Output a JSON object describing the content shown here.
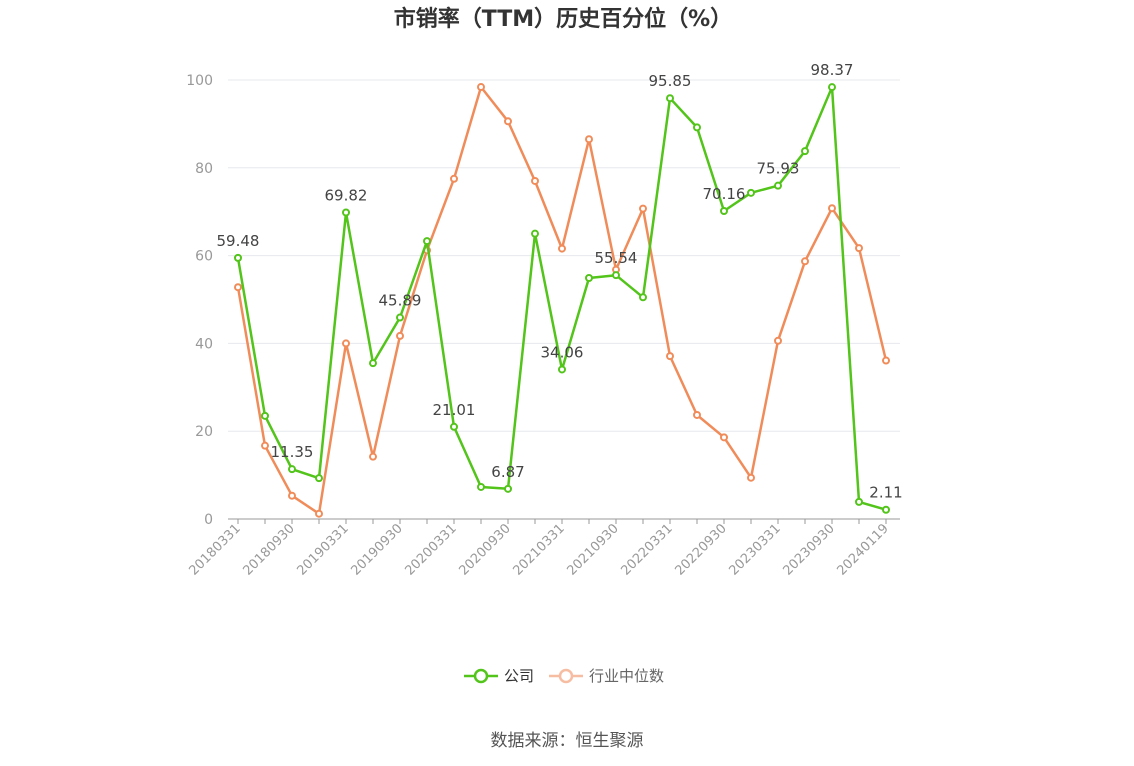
{
  "chart_data": {
    "type": "line",
    "title": "市销率（TTM）历史百分位（%）",
    "source": "数据来源：恒生聚源",
    "ylim": [
      0,
      100
    ],
    "yticks": [
      "0",
      "20",
      "40",
      "60",
      "80",
      "100"
    ],
    "grid": true,
    "legend_position": "bottom-center",
    "x": [
      "20180331",
      "20180630",
      "20180930",
      "20181231",
      "20190331",
      "20190630",
      "20190930",
      "20191231",
      "20200331",
      "20200630",
      "20200930",
      "20201231",
      "20210331",
      "20210630",
      "20210930",
      "20211231",
      "20220331",
      "20220630",
      "20220930",
      "20221231",
      "20230331",
      "20230630",
      "20230930",
      "20231231",
      "20240119"
    ],
    "xtick_labels": [
      "20180331",
      "20180930",
      "20190331",
      "20190930",
      "20200331",
      "20200930",
      "20210331",
      "20210930",
      "20220331",
      "20220930",
      "20230331",
      "20230930",
      "20240119"
    ],
    "series": [
      {
        "name": "公司",
        "color": "#52c41a",
        "values": [
          59.48,
          23.5,
          11.35,
          9.3,
          69.82,
          35.5,
          45.89,
          63.3,
          21.01,
          7.3,
          6.87,
          65.0,
          34.06,
          54.9,
          55.54,
          50.5,
          95.85,
          89.2,
          70.16,
          74.3,
          75.93,
          83.8,
          98.37,
          3.9,
          2.11
        ],
        "data_labels": [
          {
            "index": 0,
            "text": "59.48"
          },
          {
            "index": 2,
            "text": "11.35"
          },
          {
            "index": 4,
            "text": "69.82"
          },
          {
            "index": 6,
            "text": "45.89"
          },
          {
            "index": 8,
            "text": "21.01"
          },
          {
            "index": 10,
            "text": "6.87"
          },
          {
            "index": 12,
            "text": "34.06"
          },
          {
            "index": 14,
            "text": "55.54"
          },
          {
            "index": 16,
            "text": "95.85"
          },
          {
            "index": 18,
            "text": "70.16"
          },
          {
            "index": 20,
            "text": "75.93"
          },
          {
            "index": 22,
            "text": "98.37"
          },
          {
            "index": 24,
            "text": "2.11"
          }
        ]
      },
      {
        "name": "行业中位数",
        "color": "#f08c5a",
        "values": [
          52.8,
          16.7,
          5.3,
          1.2,
          40.0,
          14.2,
          41.7,
          61.2,
          77.5,
          98.4,
          90.6,
          77.0,
          61.6,
          86.5,
          56.8,
          70.7,
          37.1,
          23.7,
          18.6,
          9.4,
          40.6,
          58.7,
          70.8,
          61.7,
          36.1
        ]
      }
    ]
  }
}
